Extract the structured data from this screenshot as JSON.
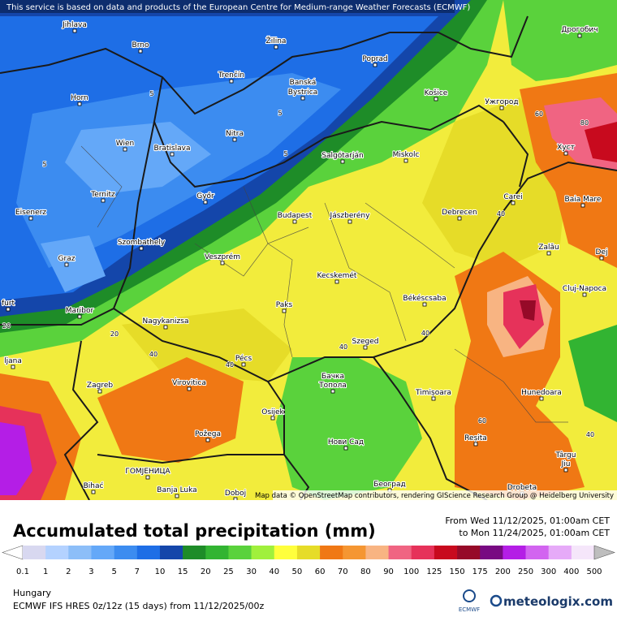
{
  "header": {
    "notice": "This service is based on data and products of the European Centre for Medium-range Weather Forecasts (ECMWF)",
    "attribution": "Map data © OpenStreetMap contributors, rendering GIScience Research Group @ Heidelberg University"
  },
  "map": {
    "cities": [
      "Jihlava",
      "Brno",
      "Žilina",
      "Poprad",
      "Дрогобич",
      "Horn",
      "Trenčín",
      "Banská",
      "Bystrica",
      "Košice",
      "Ужгород",
      "Wien",
      "Bratislava",
      "Nitra",
      "Salgótarján",
      "Miskolc",
      "Хуст",
      "Ternitz",
      "Győr",
      "Budapest",
      "Jászberény",
      "Debrecen",
      "Carei",
      "Baia Mare",
      "Eisenerz",
      "Szombathely",
      "Veszprém",
      "Zalău",
      "Dej",
      "Graz",
      "Kecskemét",
      "Cluj-Napoca",
      "furt",
      "Paks",
      "Békéscsaba",
      "Maribor",
      "Nagykanizsa",
      "Szeged",
      "Pécs",
      "ljana",
      "Zagreb",
      "Virovitica",
      "Бачка",
      "Топола",
      "Timișoara",
      "Hunedoara",
      "Osijek",
      "Požega",
      "Reșita",
      "Нови Сад",
      "Târgu",
      "Jiu",
      "Bihać",
      "ГОМЈЕНИЦА",
      "Banja Luka",
      "Doboj",
      "Београд",
      "Drobeta"
    ],
    "contour_labels": [
      "5",
      "5",
      "5",
      "5",
      "40",
      "40",
      "40",
      "40",
      "40",
      "20",
      "20",
      "60",
      "60",
      "80",
      "40"
    ]
  },
  "legend": {
    "title": "Accumulated total precipitation (mm)",
    "period_from": "From Wed 11/12/2025, 01:00am CET",
    "period_to": "to Mon 11/24/2025, 01:00am CET",
    "labels": [
      "0.1",
      "1",
      "2",
      "3",
      "5",
      "7",
      "10",
      "15",
      "20",
      "25",
      "30",
      "40",
      "50",
      "60",
      "70",
      "80",
      "90",
      "100",
      "125",
      "150",
      "175",
      "200",
      "250",
      "300",
      "400",
      "500"
    ],
    "colors": [
      "#ffffff",
      "#d8d8f0",
      "#b4d2ff",
      "#8cbef8",
      "#64a8f8",
      "#3c8cf0",
      "#1e6ee6",
      "#1446aa",
      "#1e8c28",
      "#32b432",
      "#5ad23c",
      "#a0f03c",
      "#ffff3c",
      "#e6dc28",
      "#f07814",
      "#f59632",
      "#f8b482",
      "#f06482",
      "#e6325a",
      "#c80a1e",
      "#960a28",
      "#780a82",
      "#b41ee6",
      "#d264f0",
      "#e6aaf8",
      "#f5e6fa",
      "#bebebe"
    ]
  },
  "footer": {
    "region": "Hungary",
    "model": "ECMWF IFS HRES 0z/12z (15 days) from 11/12/2025/00z",
    "ecmwf": "ECMWF",
    "brand": "meteologix.com"
  }
}
